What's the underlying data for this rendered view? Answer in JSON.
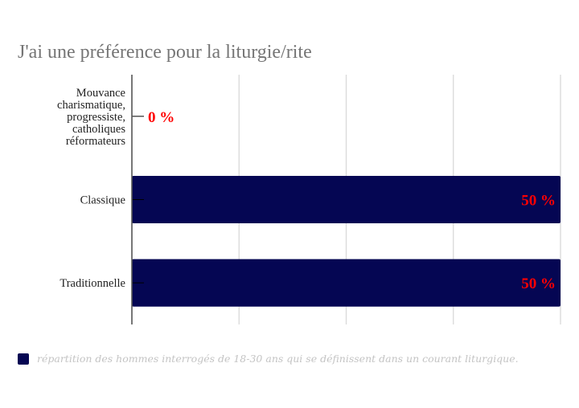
{
  "chart_data": {
    "type": "bar",
    "orientation": "horizontal",
    "title": "J'ai une préférence pour la liturgie/rite",
    "categories": [
      "Mouvance charismatique, progressiste, catholiques réformateurs",
      "Classique",
      "Traditionnelle"
    ],
    "category_label_lines": [
      [
        "Mouvance",
        "charismatique,",
        "progressiste,",
        "catholiques",
        "réformateurs"
      ],
      [
        "Classique"
      ],
      [
        "Traditionnelle"
      ]
    ],
    "values": [
      0,
      50,
      50
    ],
    "data_labels": [
      "0 %",
      "50 %",
      "50 %"
    ],
    "series": [
      {
        "name": "répartition des hommes interrogés de 18-30 ans qui se définissent dans un courant liturgique.",
        "values": [
          0,
          50,
          50
        ]
      }
    ],
    "xlim": [
      0,
      50
    ],
    "gridline_step": 12.5,
    "grid": true,
    "xlabel": "",
    "ylabel": "",
    "legend_position": "bottom-left",
    "colors": {
      "bar": "#050653",
      "data_label": "#ff0000",
      "axis": "#555555",
      "grid": "#d9d9d9",
      "title": "#757575",
      "legend_text": "#c4c4c4"
    }
  }
}
